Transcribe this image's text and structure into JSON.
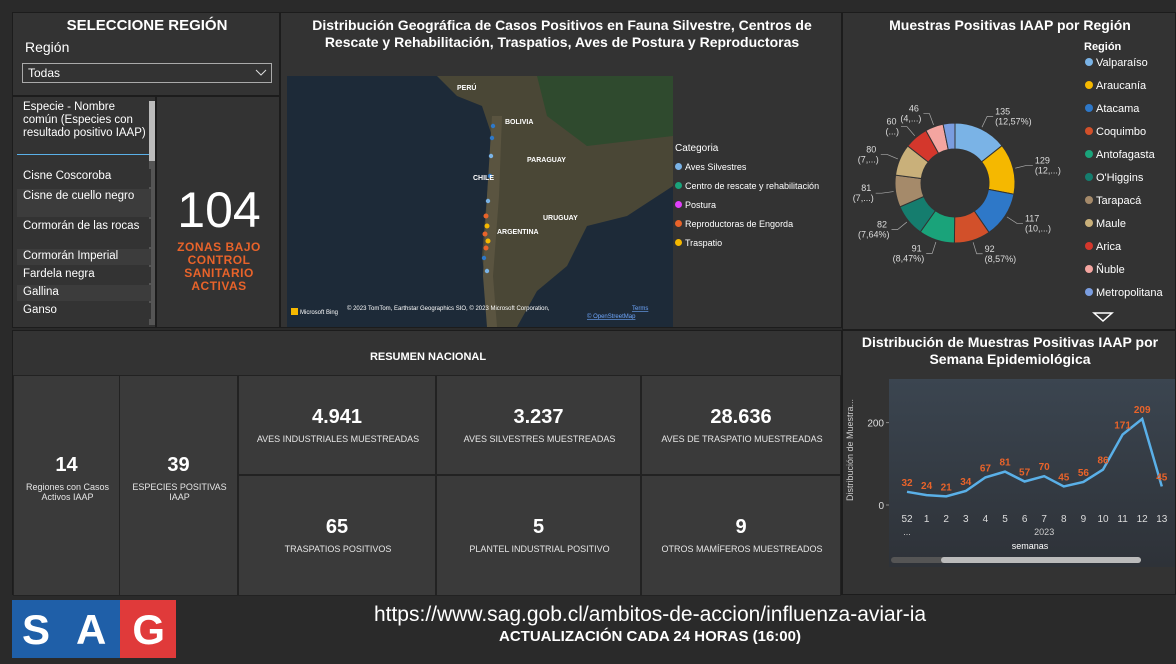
{
  "region_filter": {
    "title": "SELECCIONE REGIÓN",
    "label": "Región",
    "selected": "Todas"
  },
  "species_list": {
    "header": "Especie - Nombre común (Especies con resultado positivo IAAP)",
    "items": [
      "Cisne Coscoroba",
      "Cisne de cuello negro",
      "Cormorán de las rocas",
      "Cormorán Imperial",
      "Fardela negra",
      "Gallina",
      "Ganso"
    ]
  },
  "zonas_kpi": {
    "value": "104",
    "label": "ZONAS BAJO CONTROL SANITARIO ACTIVAS"
  },
  "map": {
    "title": "Distribución Geográfica de Casos Positivos en Fauna Silvestre, Centros de Rescate y Rehabilitación, Traspatios, Aves de Postura y Reproductoras",
    "legend_title": "Categoria",
    "legend": [
      {
        "name": "Aves Silvestres",
        "color": "#7ab3e6"
      },
      {
        "name": "Centro de rescate y rehabilitación",
        "color": "#1aa37a"
      },
      {
        "name": "Postura",
        "color": "#e040fb"
      },
      {
        "name": "Reproductoras de Engorda",
        "color": "#e8632a"
      },
      {
        "name": "Traspatio",
        "color": "#f5b800"
      }
    ],
    "places": [
      "PERÚ",
      "BOLIVIA",
      "PARAGUAY",
      "CHILE",
      "URUGUAY",
      "ARGENTINA"
    ],
    "provider": "Microsoft Bing",
    "attribution": "© 2023 TomTom, Earthstar Geographics SIO, © 2023 Microsoft Corporation,",
    "terms": "Terms",
    "osm": "© OpenStreetMap"
  },
  "summary": {
    "title": "RESUMEN NACIONAL",
    "kpis": [
      {
        "value": "14",
        "label": "Regiones con Casos Activos IAAP"
      },
      {
        "value": "39",
        "label": "ESPECIES POSITIVAS IAAP"
      },
      {
        "value": "4.941",
        "label": "AVES INDUSTRIALES MUESTREADAS"
      },
      {
        "value": "3.237",
        "label": "AVES SILVESTRES MUESTREADAS"
      },
      {
        "value": "28.636",
        "label": "AVES DE TRASPATIO MUESTREADAS"
      },
      {
        "value": "65",
        "label": "TRASPATIOS POSITIVOS"
      },
      {
        "value": "5",
        "label": "PLANTEL INDUSTRIAL POSITIVO"
      },
      {
        "value": "9",
        "label": "OTROS MAMÍFEROS MUESTREADOS"
      }
    ]
  },
  "chart_data": [
    {
      "type": "donut",
      "title": "Muestras Positivas IAAP por Región",
      "legend_title": "Región",
      "categories": [
        "Valparaíso",
        "Araucanía",
        "Atacama",
        "Coquimbo",
        "Antofagasta",
        "O'Higgins",
        "Tarapacá",
        "Maule",
        "Arica",
        "Ñuble",
        "Metropolitana"
      ],
      "values": [
        135,
        129,
        117,
        92,
        91,
        82,
        81,
        80,
        60,
        46,
        30
      ],
      "value_labels": [
        "135 (12,57%)",
        "129 (12,...)",
        "117 (10,...)",
        "92 (8,57%)",
        "91 (8,47%)",
        "82 (7,64%)",
        "81 (7,...)",
        "80 (7,...)",
        "60 (...)",
        "46 (4,...)",
        null
      ],
      "colors": [
        "#7ab3e6",
        "#f5b800",
        "#2e78c8",
        "#d2502a",
        "#1aa37a",
        "#157d6e",
        "#a58a6a",
        "#c9b07a",
        "#d4372c",
        "#f4a5a0",
        "#7a9de0"
      ]
    },
    {
      "type": "line",
      "title": "Distribución de Muestras Positivas IAAP por Semana Epidemiológica",
      "ylabel": "Distribución de Muestra...",
      "xlabel": "semanas",
      "categories": [
        "52",
        "1",
        "2",
        "3",
        "4",
        "5",
        "6",
        "7",
        "8",
        "9",
        "10",
        "11",
        "12",
        "13"
      ],
      "x_group_labels": [
        "...",
        "2023"
      ],
      "values": [
        32,
        24,
        21,
        34,
        67,
        81,
        57,
        70,
        45,
        56,
        86,
        171,
        209,
        45
      ],
      "color": "#5ab0e8",
      "label_color": "#e8632a",
      "ylim": [
        0,
        250
      ],
      "yticks": [
        0,
        200
      ]
    }
  ],
  "footer": {
    "logo": "SAG",
    "url": "https://www.sag.gob.cl/ambitos-de-accion/influenza-aviar-ia",
    "update": "ACTUALIZACIÓN CADA 24 HORAS (16:00)"
  }
}
